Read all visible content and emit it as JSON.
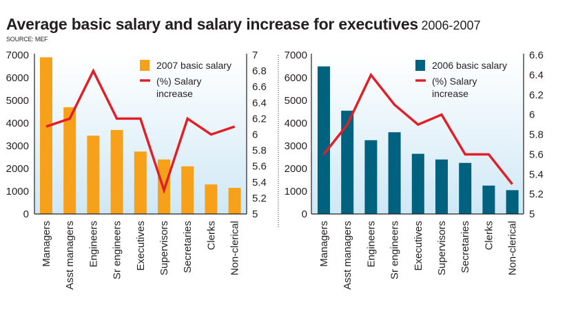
{
  "header": {
    "title": "Average basic salary and salary increase for executives",
    "subtitle": "2006-2007",
    "source": "SOURCE: MEF"
  },
  "colors": {
    "bar_2007": "#f7a11a",
    "bar_2006": "#00627e",
    "line": "#e31e26",
    "bg_top": "#ffffff",
    "bg_bottom": "#cfe8f6"
  },
  "chart_data": [
    {
      "type": "bar",
      "title": "2007",
      "categories": [
        "Managers",
        "Asst managers",
        "Engineers",
        "Sr engineers",
        "Executives",
        "Supervisors",
        "Secretaries",
        "Clerks",
        "Non-clerical"
      ],
      "series": [
        {
          "name": "2007 basic salary",
          "type": "bar",
          "axis": "left",
          "values": [
            6900,
            4700,
            3450,
            3700,
            2750,
            2400,
            2100,
            1300,
            1150
          ]
        },
        {
          "name": "(%) Salary increase",
          "type": "line",
          "axis": "right",
          "values": [
            6.1,
            6.2,
            6.8,
            6.2,
            6.2,
            5.3,
            6.2,
            6.0,
            6.1
          ]
        }
      ],
      "legend": [
        "2007 basic salary",
        "(%) Salary",
        "increase"
      ],
      "legend_position": "top-right",
      "ylim_left": [
        0,
        7000
      ],
      "yticks_left": [
        "0",
        "1000",
        "2000",
        "3000",
        "4000",
        "5000",
        "6000",
        "7000"
      ],
      "ylim_right": [
        5,
        7
      ],
      "yticks_right": [
        "5",
        "5.2",
        "5.4",
        "5.6",
        "5.8",
        "6",
        "6.2",
        "6.4",
        "6.6",
        "6.8",
        "7"
      ],
      "xlabel": "",
      "ylabel": "",
      "grid": false
    },
    {
      "type": "bar",
      "title": "2006",
      "categories": [
        "Managers",
        "Asst managers",
        "Engineers",
        "Sr engineers",
        "Executives",
        "Supervisors",
        "Secretaries",
        "Clerks",
        "Non-clerical"
      ],
      "series": [
        {
          "name": "2006 basic salary",
          "type": "bar",
          "axis": "left",
          "values": [
            6500,
            4550,
            3250,
            3600,
            2650,
            2400,
            2250,
            1250,
            1050
          ]
        },
        {
          "name": "(%) Salary increase",
          "type": "line",
          "axis": "right",
          "values": [
            5.6,
            5.9,
            6.4,
            6.1,
            5.9,
            6.0,
            5.6,
            5.6,
            5.3
          ]
        }
      ],
      "legend": [
        "2006 basic salary",
        "(%) Salary",
        "increase"
      ],
      "legend_position": "top-right",
      "ylim_left": [
        0,
        7000
      ],
      "yticks_left": [
        "0",
        "1000",
        "2000",
        "3000",
        "4000",
        "5000",
        "6000",
        "7000"
      ],
      "ylim_right": [
        5,
        6.6
      ],
      "yticks_right": [
        "5",
        "5.2",
        "5.4",
        "5.6",
        "5.8",
        "6",
        "6.2",
        "6.4",
        "6.6"
      ],
      "xlabel": "",
      "ylabel": "",
      "grid": false
    }
  ]
}
